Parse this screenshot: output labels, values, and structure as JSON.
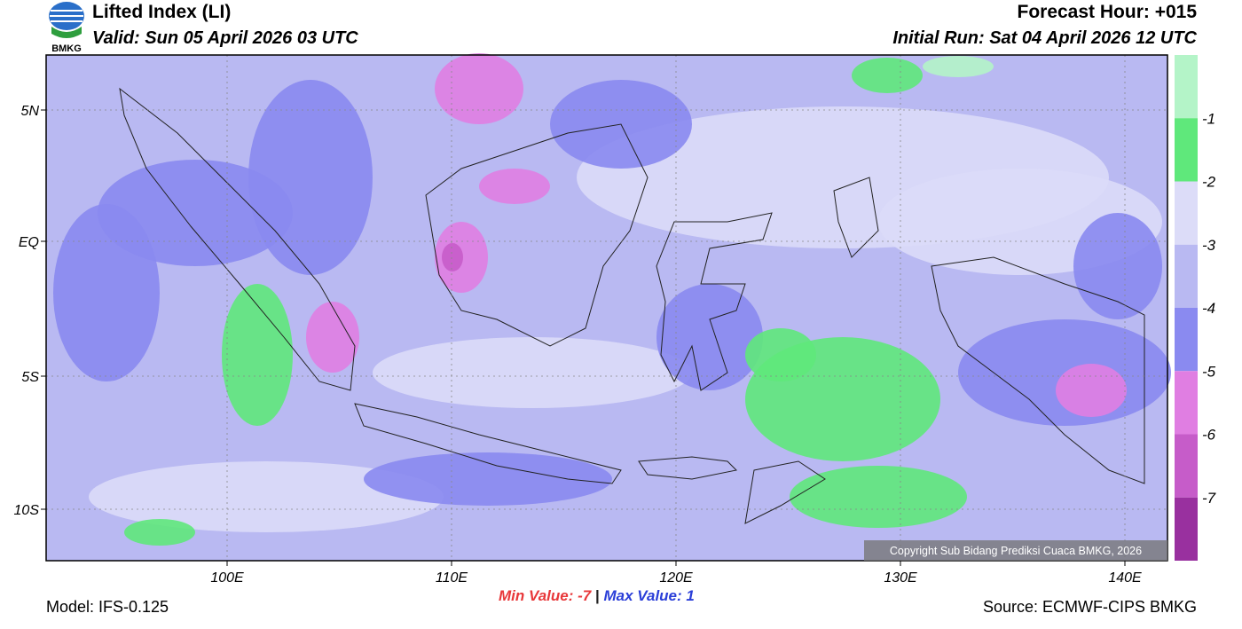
{
  "header": {
    "title": "Lifted Index (LI)",
    "valid": "Valid: Sun 05 April 2026 03 UTC",
    "forecast_hour": "Forecast Hour: +015",
    "initial_run": "Initial Run: Sat 04 April 2026 12 UTC",
    "logo_text": "BMKG"
  },
  "map": {
    "lat_labels": [
      "5N",
      "EQ",
      "5S",
      "10S"
    ],
    "lon_labels": [
      "100E",
      "110E",
      "120E",
      "130E",
      "140E"
    ],
    "copyright": "Copyright Sub Bidang Prediksi Cuaca BMKG, 2026"
  },
  "colorbar": {
    "labels": [
      "-1",
      "-2",
      "-3",
      "-4",
      "-5",
      "-6",
      "-7"
    ],
    "colors": [
      "#b4f4c8",
      "#5fe87b",
      "#dcdcf8",
      "#b9b9f2",
      "#8a8af0",
      "#e07ee2",
      "#c65cc9",
      "#99309f"
    ]
  },
  "footer": {
    "model": "Model: IFS-0.125",
    "min_label": "Min Value:",
    "min_value": -7,
    "separator": "|",
    "max_label": "Max Value:",
    "max_value": 1,
    "source": "Source: ECMWF-CIPS BMKG"
  }
}
